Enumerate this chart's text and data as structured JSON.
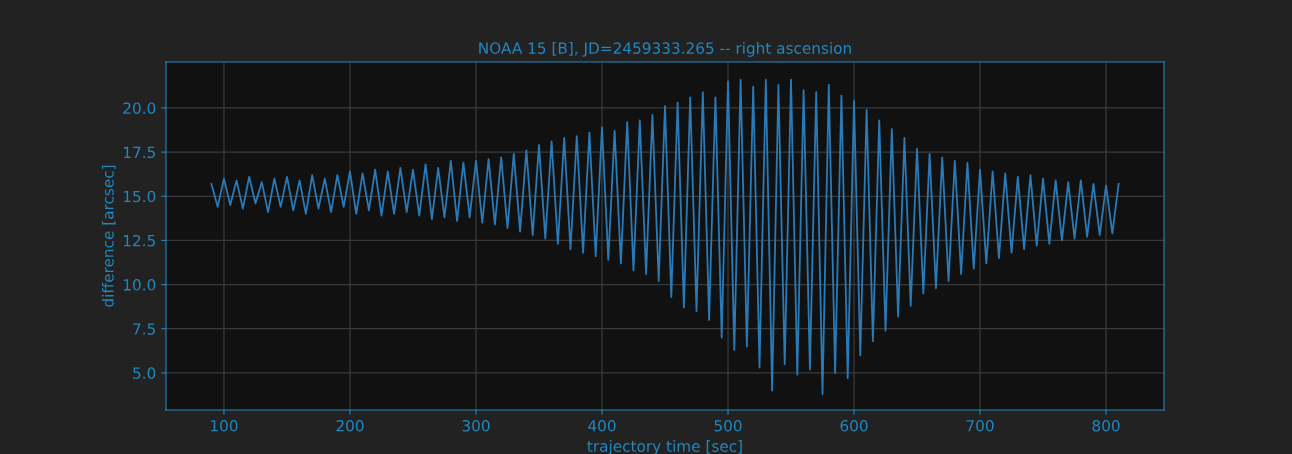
{
  "chart_data": {
    "type": "line",
    "title": "NOAA 15 [B], JD=2459333.265 -- right ascension",
    "xlabel": "trajectory time [sec]",
    "ylabel": "difference [arcsec]",
    "x": [
      90,
      95,
      100,
      105,
      110,
      115,
      120,
      125,
      130,
      135,
      140,
      145,
      150,
      155,
      160,
      165,
      170,
      175,
      180,
      185,
      190,
      195,
      200,
      205,
      210,
      215,
      220,
      225,
      230,
      235,
      240,
      245,
      250,
      255,
      260,
      265,
      270,
      275,
      280,
      285,
      290,
      295,
      300,
      305,
      310,
      315,
      320,
      325,
      330,
      335,
      340,
      345,
      350,
      355,
      360,
      365,
      370,
      375,
      380,
      385,
      390,
      395,
      400,
      405,
      410,
      415,
      420,
      425,
      430,
      435,
      440,
      445,
      450,
      455,
      460,
      465,
      470,
      475,
      480,
      485,
      490,
      495,
      500,
      505,
      510,
      515,
      520,
      525,
      530,
      535,
      540,
      545,
      550,
      555,
      560,
      565,
      570,
      575,
      580,
      585,
      590,
      595,
      600,
      605,
      610,
      615,
      620,
      625,
      630,
      635,
      640,
      645,
      650,
      655,
      660,
      665,
      670,
      675,
      680,
      685,
      690,
      695,
      700,
      705,
      710,
      715,
      720,
      725,
      730,
      735,
      740,
      745,
      750,
      755,
      760,
      765,
      770,
      775,
      780,
      785,
      790,
      795,
      800,
      805,
      810
    ],
    "series": [
      {
        "color": "#2a7ab8",
        "values": [
          15.7,
          14.4,
          16.0,
          14.5,
          15.9,
          14.3,
          16.1,
          14.6,
          15.8,
          14.1,
          16.0,
          14.4,
          16.1,
          14.2,
          15.9,
          14.0,
          16.2,
          14.3,
          16.0,
          14.1,
          16.2,
          14.4,
          16.4,
          14.0,
          16.3,
          14.2,
          16.5,
          13.9,
          16.4,
          14.0,
          16.6,
          14.1,
          16.5,
          13.9,
          16.8,
          13.7,
          16.6,
          13.8,
          17.0,
          13.6,
          16.9,
          13.8,
          17.0,
          13.5,
          17.1,
          13.4,
          17.2,
          13.2,
          17.4,
          13.0,
          17.6,
          12.8,
          17.9,
          12.6,
          18.1,
          12.3,
          18.3,
          12.0,
          18.4,
          11.8,
          18.6,
          11.6,
          18.9,
          11.4,
          18.7,
          11.2,
          19.2,
          10.8,
          19.3,
          10.6,
          19.6,
          10.2,
          20.1,
          9.3,
          20.3,
          8.7,
          20.6,
          8.5,
          20.9,
          8.0,
          20.6,
          7.0,
          21.5,
          6.3,
          21.6,
          6.5,
          21.2,
          5.3,
          21.6,
          4.0,
          21.3,
          5.5,
          21.6,
          4.9,
          21.0,
          5.2,
          20.9,
          3.8,
          21.3,
          5.0,
          20.7,
          4.7,
          20.4,
          6.0,
          19.9,
          6.8,
          19.3,
          7.4,
          18.8,
          8.2,
          18.3,
          8.8,
          17.7,
          9.5,
          17.4,
          9.8,
          17.2,
          10.2,
          17.0,
          10.6,
          16.9,
          10.9,
          16.5,
          11.2,
          16.4,
          11.5,
          16.3,
          11.8,
          16.1,
          12.0,
          16.2,
          12.2,
          16.0,
          12.3,
          15.9,
          12.5,
          15.8,
          12.6,
          15.9,
          12.7,
          15.7,
          12.8,
          15.6,
          12.9,
          15.7
        ]
      }
    ],
    "xlim": [
      54,
      846
    ],
    "ylim": [
      2.9,
      22.6
    ],
    "xticks": [
      100,
      200,
      300,
      400,
      500,
      600,
      700,
      800
    ],
    "yticks": [
      {
        "value": 5,
        "label": "5.0"
      },
      {
        "value": 7.5,
        "label": "7.5"
      },
      {
        "value": 10,
        "label": "10.0"
      },
      {
        "value": 12.5,
        "label": "12.5"
      },
      {
        "value": 15,
        "label": "15.0"
      },
      {
        "value": 17.5,
        "label": "17.5"
      },
      {
        "value": 20,
        "label": "20.0"
      }
    ],
    "grid": true,
    "line_style": "solid",
    "marker": "none"
  }
}
